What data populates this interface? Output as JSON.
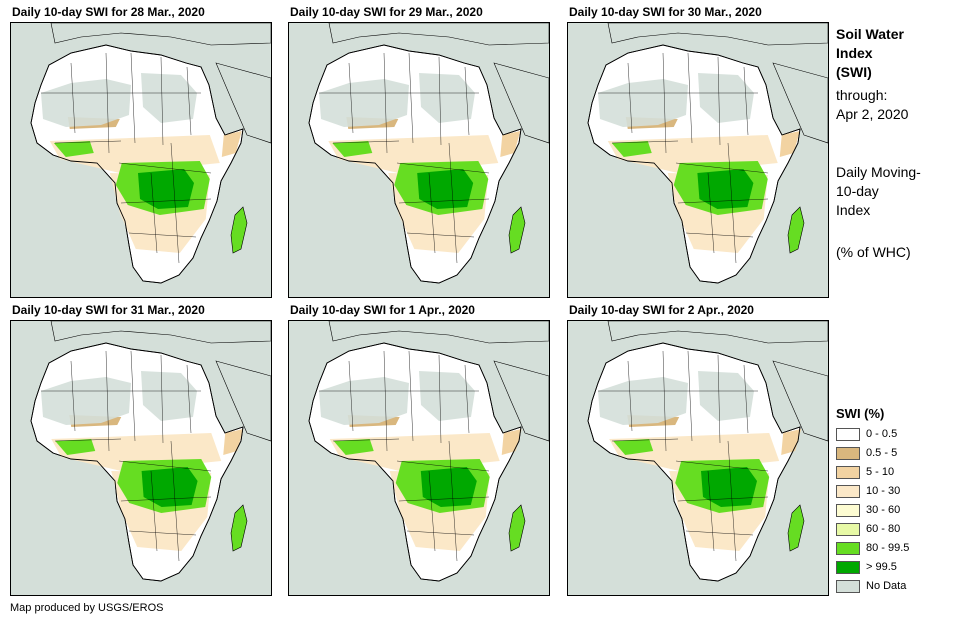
{
  "panels": [
    {
      "title": "Daily 10-day  SWI for 28 Mar., 2020",
      "variant": 0
    },
    {
      "title": "Daily 10-day  SWI for 29 Mar., 2020",
      "variant": 1
    },
    {
      "title": "Daily 10-day  SWI for 30 Mar., 2020",
      "variant": 2
    },
    {
      "title": "Daily 10-day  SWI for 31 Mar., 2020",
      "variant": 3
    },
    {
      "title": "Daily 10-day  SWI for 1 Apr., 2020",
      "variant": 4
    },
    {
      "title": "Daily 10-day  SWI for 2 Apr., 2020",
      "variant": 5
    }
  ],
  "sidebar": {
    "title_line1": "Soil Water",
    "title_line2": "Index",
    "title_line3": "(SWI)",
    "through_label": "through:",
    "through_date": "Apr 2, 2020",
    "desc_line1": "Daily Moving-",
    "desc_line2": "10-day",
    "desc_line3": "Index",
    "unit": "(% of WHC)"
  },
  "legend": {
    "title": "SWI (%)",
    "items": [
      {
        "label": "0 - 0.5",
        "color": "#ffffff"
      },
      {
        "label": "0.5 - 5",
        "color": "#d9b77e"
      },
      {
        "label": "5 - 10",
        "color": "#f2d3a2"
      },
      {
        "label": "10 - 30",
        "color": "#fbe8c8"
      },
      {
        "label": "30 - 60",
        "color": "#fdfcd2"
      },
      {
        "label": "60 - 80",
        "color": "#e7f9a6"
      },
      {
        "label": "80 - 99.5",
        "color": "#66dd22"
      },
      {
        "label": "> 99.5",
        "color": "#00a800"
      },
      {
        "label": "No Data",
        "color": "#d4dfd9"
      }
    ]
  },
  "footer": "Map produced by USGS/EROS",
  "colors": {
    "water": "#d4dfd9",
    "nodata_land": "#d4dfd9",
    "dry": "#f2d3a2",
    "very_dry": "#d9b77e",
    "moist": "#fbe8c8",
    "wet": "#66dd22",
    "saturated": "#00a800"
  }
}
